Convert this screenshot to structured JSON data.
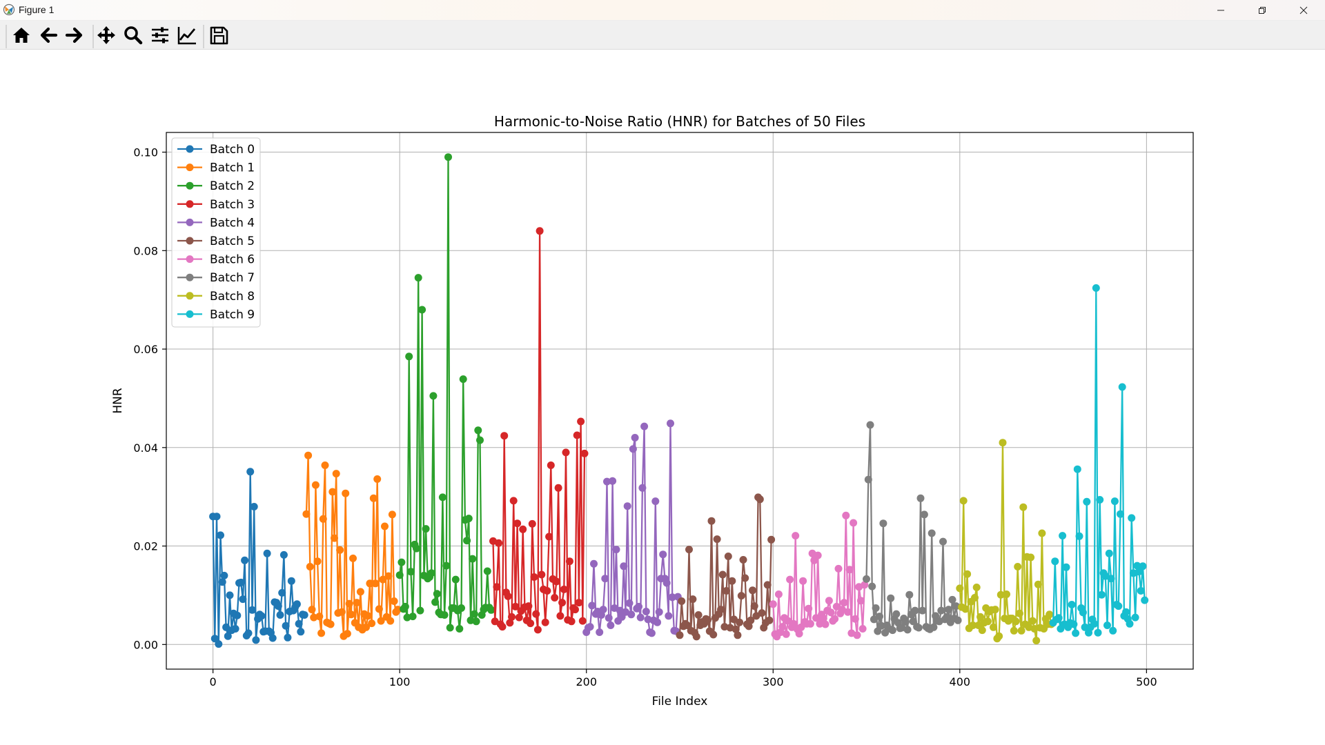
{
  "window": {
    "title": "Figure 1"
  },
  "toolbar": {
    "buttons": [
      {
        "icon": "home-icon"
      },
      {
        "icon": "back-arrow-icon"
      },
      {
        "icon": "forward-arrow-icon"
      },
      {
        "icon": "pan-icon"
      },
      {
        "icon": "zoom-icon"
      },
      {
        "icon": "subplots-icon"
      },
      {
        "icon": "edit-axis-icon"
      },
      {
        "icon": "save-icon"
      }
    ]
  },
  "chart_data": {
    "type": "line",
    "title": "Harmonic-to-Noise Ratio (HNR) for Batches of 50 Files",
    "xlabel": "File Index",
    "ylabel": "HNR",
    "xlim": [
      -25,
      525
    ],
    "ylim": [
      -0.005,
      0.104
    ],
    "xticks": [
      0,
      100,
      200,
      300,
      400,
      500
    ],
    "xtick_labels": [
      "0",
      "100",
      "200",
      "300",
      "400",
      "500"
    ],
    "yticks": [
      0.0,
      0.02,
      0.04,
      0.06,
      0.08,
      0.1
    ],
    "ytick_labels": [
      "0.00",
      "0.02",
      "0.04",
      "0.06",
      "0.08",
      "0.10"
    ],
    "grid": true,
    "legend_position": "upper-left",
    "markers": "circle",
    "series": [
      {
        "name": "Batch 0",
        "color": "#1f77b4",
        "x_start": 0,
        "values": [
          0.026,
          0.0012,
          0.026,
          0.0001,
          0.0222,
          0.0127,
          0.014,
          0.0035,
          0.0017,
          0.01,
          0.0029,
          0.0063,
          0.0032,
          0.0059,
          0.0125,
          0.0126,
          0.0092,
          0.0171,
          0.0018,
          0.0023,
          0.0351,
          0.007,
          0.028,
          0.0009,
          0.0052,
          0.0061,
          0.0058,
          0.0026,
          0.0027,
          0.0185,
          0.0027,
          0.0024,
          0.0013,
          0.0086,
          0.0085,
          0.0078,
          0.006,
          0.0105,
          0.0182,
          0.0038,
          0.0014,
          0.0067,
          0.0129,
          0.0069,
          0.0076,
          0.0082,
          0.0042,
          0.0026,
          0.0061,
          0.006
        ]
      },
      {
        "name": "Batch 1",
        "color": "#ff7f0e",
        "x_start": 50,
        "values": [
          0.0265,
          0.0384,
          0.0158,
          0.0071,
          0.0055,
          0.0324,
          0.0169,
          0.0057,
          0.0023,
          0.0255,
          0.0364,
          0.0045,
          0.0043,
          0.0041,
          0.031,
          0.0216,
          0.0347,
          0.0064,
          0.0192,
          0.0066,
          0.0017,
          0.0307,
          0.0022,
          0.0083,
          0.0061,
          0.0175,
          0.0044,
          0.0085,
          0.0035,
          0.0107,
          0.003,
          0.0062,
          0.0035,
          0.0058,
          0.0124,
          0.0043,
          0.0297,
          0.0124,
          0.0336,
          0.0072,
          0.0048,
          0.0132,
          0.024,
          0.0056,
          0.0139,
          0.0048,
          0.0264,
          0.0088,
          0.0066,
          0.0071
        ]
      },
      {
        "name": "Batch 2",
        "color": "#2ca02c",
        "x_start": 100,
        "values": [
          0.0141,
          0.0167,
          0.0072,
          0.0077,
          0.0055,
          0.0585,
          0.0148,
          0.0057,
          0.0203,
          0.0195,
          0.0745,
          0.0069,
          0.068,
          0.014,
          0.0235,
          0.0134,
          0.0137,
          0.0145,
          0.0505,
          0.0086,
          0.0103,
          0.0065,
          0.0061,
          0.0299,
          0.006,
          0.016,
          0.099,
          0.0034,
          0.0074,
          0.0074,
          0.0132,
          0.0069,
          0.0032,
          0.0074,
          0.0539,
          0.0253,
          0.0211,
          0.0256,
          0.0049,
          0.0174,
          0.0062,
          0.0047,
          0.0435,
          0.0415,
          0.006,
          0.0071,
          0.0075,
          0.0149,
          0.0075,
          0.007
        ]
      },
      {
        "name": "Batch 3",
        "color": "#d62728",
        "x_start": 150,
        "values": [
          0.021,
          0.0047,
          0.0117,
          0.0206,
          0.0041,
          0.0036,
          0.0424,
          0.0106,
          0.0098,
          0.0044,
          0.0056,
          0.0292,
          0.0077,
          0.0246,
          0.0055,
          0.0068,
          0.0234,
          0.0076,
          0.0049,
          0.0078,
          0.0043,
          0.0245,
          0.0137,
          0.0062,
          0.003,
          0.084,
          0.0142,
          0.0112,
          0.0045,
          0.0109,
          0.0219,
          0.0364,
          0.0133,
          0.0095,
          0.0128,
          0.0318,
          0.0058,
          0.0085,
          0.0112,
          0.039,
          0.005,
          0.0169,
          0.0047,
          0.0074,
          0.0071,
          0.0425,
          0.0085,
          0.0453,
          0.0048,
          0.0388
        ]
      },
      {
        "name": "Batch 4",
        "color": "#9467bd",
        "x_start": 200,
        "values": [
          0.0025,
          0.0034,
          0.0036,
          0.0079,
          0.0164,
          0.0062,
          0.0067,
          0.0025,
          0.006,
          0.0071,
          0.0134,
          0.0331,
          0.0054,
          0.0039,
          0.0332,
          0.0074,
          0.0193,
          0.0048,
          0.0069,
          0.0056,
          0.0159,
          0.0066,
          0.0281,
          0.0084,
          0.0061,
          0.0397,
          0.042,
          0.0073,
          0.0077,
          0.0055,
          0.0318,
          0.0443,
          0.0067,
          0.0051,
          0.0025,
          0.0023,
          0.0049,
          0.0291,
          0.0045,
          0.0066,
          0.0134,
          0.0183,
          0.0134,
          0.0125,
          0.0058,
          0.0449,
          0.0096,
          0.0028,
          0.0027,
          0.0097
        ]
      },
      {
        "name": "Batch 5",
        "color": "#8c564b",
        "x_start": 250,
        "values": [
          0.0019,
          0.0088,
          0.0037,
          0.0042,
          0.0039,
          0.0193,
          0.0028,
          0.0092,
          0.0024,
          0.0016,
          0.006,
          0.0039,
          0.0046,
          0.0042,
          0.0052,
          0.005,
          0.0027,
          0.0251,
          0.002,
          0.0054,
          0.0214,
          0.0062,
          0.0071,
          0.0142,
          0.0036,
          0.0109,
          0.0179,
          0.0034,
          0.0129,
          0.0051,
          0.0031,
          0.0019,
          0.0045,
          0.0099,
          0.0172,
          0.0135,
          0.0041,
          0.0037,
          0.0049,
          0.011,
          0.0078,
          0.0058,
          0.0299,
          0.0295,
          0.0064,
          0.0034,
          0.0044,
          0.0121,
          0.0049,
          0.0213
        ]
      },
      {
        "name": "Batch 6",
        "color": "#e377c2",
        "x_start": 300,
        "values": [
          0.0082,
          0.0021,
          0.0016,
          0.0102,
          0.0025,
          0.0036,
          0.0054,
          0.0021,
          0.0048,
          0.0132,
          0.0035,
          0.0042,
          0.0221,
          0.0031,
          0.0022,
          0.0035,
          0.0129,
          0.0046,
          0.0042,
          0.0073,
          0.0042,
          0.0185,
          0.0171,
          0.0054,
          0.0181,
          0.0042,
          0.0061,
          0.0053,
          0.0041,
          0.0069,
          0.0089,
          0.0065,
          0.0048,
          0.0052,
          0.0077,
          0.0154,
          0.0063,
          0.0071,
          0.0085,
          0.0262,
          0.0066,
          0.0152,
          0.0023,
          0.0247,
          0.0052,
          0.0019,
          0.0117,
          0.0089,
          0.0032,
          0.0121
        ]
      },
      {
        "name": "Batch 7",
        "color": "#7f7f7f",
        "x_start": 350,
        "values": [
          0.0133,
          0.0335,
          0.0446,
          0.0118,
          0.0051,
          0.0074,
          0.0027,
          0.0057,
          0.0038,
          0.0246,
          0.0024,
          0.0039,
          0.0032,
          0.0094,
          0.0029,
          0.0052,
          0.0062,
          0.0044,
          0.0033,
          0.0034,
          0.0053,
          0.0046,
          0.003,
          0.0101,
          0.0061,
          0.0047,
          0.0069,
          0.0036,
          0.0034,
          0.0297,
          0.0069,
          0.0264,
          0.0036,
          0.0033,
          0.0031,
          0.0226,
          0.0035,
          0.0058,
          0.0048,
          0.0047,
          0.0069,
          0.0209,
          0.0051,
          0.0056,
          0.0071,
          0.0045,
          0.0091,
          0.0053,
          0.0078,
          0.0049
        ]
      },
      {
        "name": "Batch 8",
        "color": "#bcbd22",
        "x_start": 400,
        "values": [
          0.0114,
          0.0076,
          0.0292,
          0.0072,
          0.0143,
          0.0033,
          0.0087,
          0.0039,
          0.0095,
          0.0116,
          0.0039,
          0.0056,
          0.0029,
          0.0044,
          0.0074,
          0.0047,
          0.0067,
          0.007,
          0.0035,
          0.0071,
          0.0012,
          0.0017,
          0.0101,
          0.041,
          0.0053,
          0.0102,
          0.0048,
          0.0053,
          0.0053,
          0.0028,
          0.0047,
          0.0158,
          0.0063,
          0.0028,
          0.0279,
          0.0041,
          0.0178,
          0.0035,
          0.0177,
          0.0048,
          0.0032,
          0.0008,
          0.0122,
          0.0034,
          0.0226,
          0.0032,
          0.0052,
          0.0041,
          0.0061,
          0.0041
        ]
      },
      {
        "name": "Batch 9",
        "color": "#17becf",
        "x_start": 450,
        "values": [
          0.0044,
          0.0169,
          0.0051,
          0.0054,
          0.0032,
          0.0221,
          0.0041,
          0.0157,
          0.0035,
          0.0044,
          0.0081,
          0.0041,
          0.0023,
          0.0356,
          0.022,
          0.0074,
          0.0065,
          0.0035,
          0.029,
          0.0024,
          0.0035,
          0.0051,
          0.0042,
          0.0724,
          0.0024,
          0.0294,
          0.0101,
          0.0145,
          0.0139,
          0.0039,
          0.0185,
          0.0134,
          0.0028,
          0.0291,
          0.0081,
          0.0078,
          0.0265,
          0.0523,
          0.0058,
          0.0066,
          0.0052,
          0.0042,
          0.0257,
          0.0145,
          0.0055,
          0.016,
          0.0148,
          0.0109,
          0.0159,
          0.009
        ]
      }
    ]
  }
}
